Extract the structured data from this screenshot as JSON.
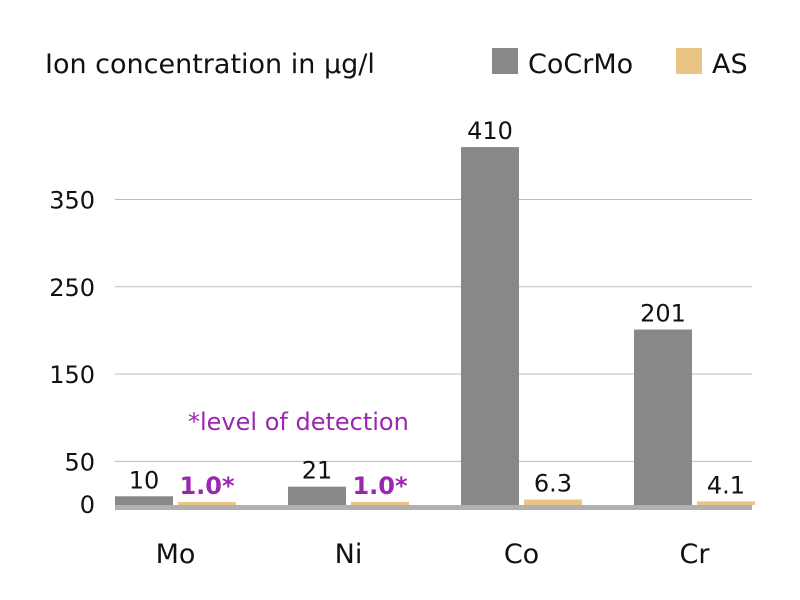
{
  "chart_data": {
    "type": "bar",
    "title": "Ion concentration in µg/l",
    "categories": [
      "Mo",
      "Ni",
      "Co",
      "Cr"
    ],
    "series": [
      {
        "name": "CoCrMo",
        "color": "#888888",
        "values": [
          10,
          21,
          410,
          201
        ],
        "labels": [
          "10",
          "21",
          "410",
          "201"
        ]
      },
      {
        "name": "AS",
        "color": "#e8c485",
        "values": [
          1.0,
          1.0,
          6.3,
          4.1
        ],
        "labels": [
          "1.0*",
          "1.0*",
          "6.3",
          "4.1"
        ]
      }
    ],
    "label_colors": {
      "detection": "#9b27b0",
      "normal": "#111111"
    },
    "detection_flags": [
      [
        false,
        false,
        false,
        false
      ],
      [
        true,
        true,
        false,
        false
      ]
    ],
    "yticks": [
      0,
      50,
      150,
      250,
      350
    ],
    "ylim": [
      0,
      410
    ],
    "grid": true,
    "legend": "top-right",
    "annotation": "*level of detection",
    "xlabel": "",
    "ylabel": ""
  }
}
